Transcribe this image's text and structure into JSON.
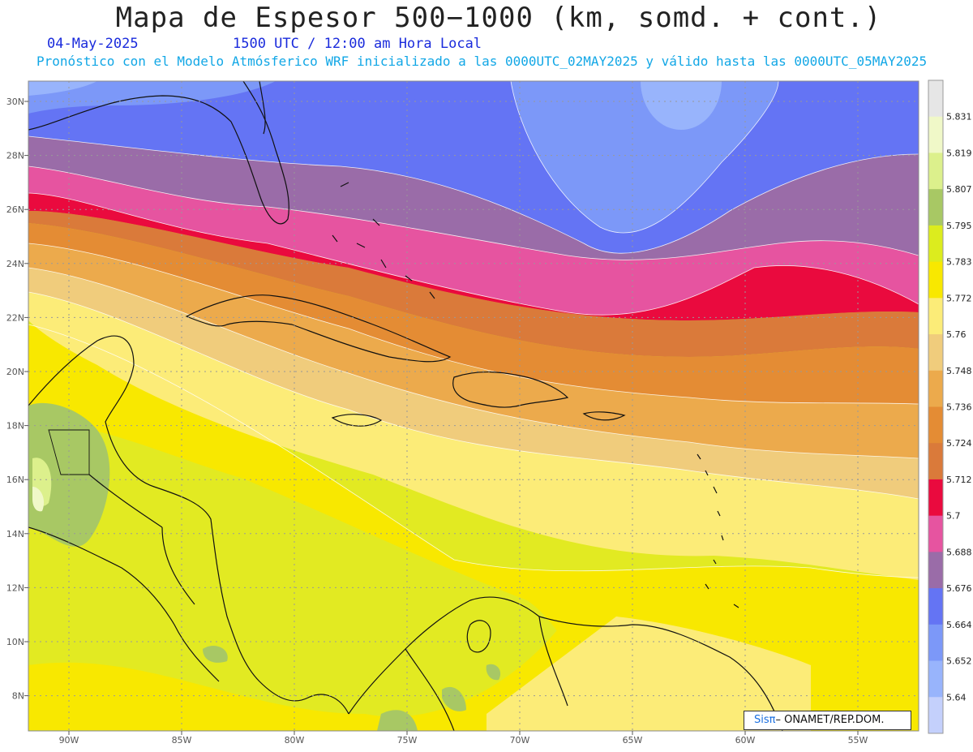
{
  "header": {
    "title": "Mapa de Espesor 500−1000 (km, somd. + cont.)",
    "date": "04-May-2025",
    "time": "1500 UTC / 12:00 am Hora Local",
    "subtitle": "Pronóstico con el Modelo Atmósferico WRF inicializado a las 0000UTC_02MAY2025 y válido hasta las  0000UTC_05MAY2025"
  },
  "map": {
    "lat_labels": [
      "30N",
      "28N",
      "26N",
      "24N",
      "22N",
      "20N",
      "18N",
      "16N",
      "14N",
      "12N",
      "10N",
      "8N"
    ],
    "lon_labels": [
      "90W",
      "85W",
      "80W",
      "75W",
      "70W",
      "65W",
      "60W",
      "55W"
    ]
  },
  "colorbar": {
    "labels": [
      "5.831",
      "5.819",
      "5.807",
      "5.795",
      "5.783",
      "5.772",
      "5.76",
      "5.748",
      "5.736",
      "5.724",
      "5.712",
      "5.7",
      "5.688",
      "5.676",
      "5.664",
      "5.652",
      "5.64"
    ],
    "colors": [
      "#e6e6e6",
      "#f0f8c8",
      "#dcf08c",
      "#a8c864",
      "#dcec1e",
      "#f8e800",
      "#fcec78",
      "#f0cc7c",
      "#ecaa4c",
      "#e48c34",
      "#da7a3a",
      "#ea0a3e",
      "#e654a0",
      "#9a6ca8",
      "#6474f4",
      "#7c98f8",
      "#98b4fc",
      "#c4d0fc"
    ]
  },
  "credit": {
    "brand": "Sisπ",
    "org": "– ONAMET/REP.DOM."
  }
}
